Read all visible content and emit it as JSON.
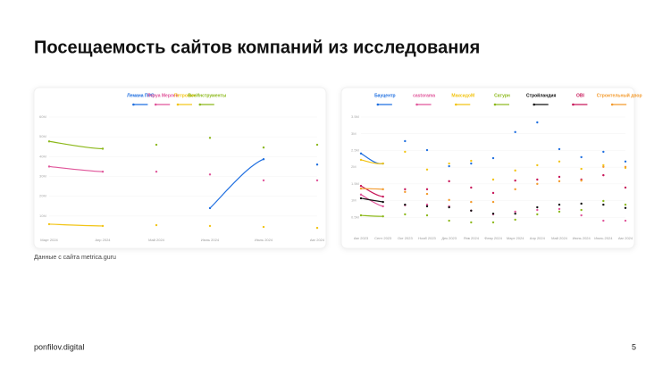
{
  "title": "Посещаемость сайтов компаний из исследования",
  "source": "Данные с сайта metrica.guru",
  "brand": "ponfilov.digital",
  "page_number": "5",
  "chart_data": [
    {
      "type": "line",
      "categories": [
        "Март 2024",
        "Апр 2024",
        "Май 2024",
        "Июнь 2024",
        "Июль 2024",
        "Авг 2024"
      ],
      "ylim": [
        0,
        60
      ],
      "yticks": [
        {
          "value": 10,
          "label": "10M"
        },
        {
          "value": 20,
          "label": "20M"
        },
        {
          "value": 30,
          "label": "30M"
        },
        {
          "value": 40,
          "label": "40M"
        },
        {
          "value": 50,
          "label": "50M"
        },
        {
          "value": 60,
          "label": "60M"
        }
      ],
      "series": [
        {
          "name": "Лемана ПРО",
          "color": "#1f6fe0",
          "values": [
            null,
            null,
            null,
            14,
            38.7,
            36
          ]
        },
        {
          "name": "Леруа Мерлен",
          "color": "#e0559a",
          "values": [
            35,
            32.4,
            32.4,
            31,
            28,
            28
          ]
        },
        {
          "name": "Петрович",
          "color": "#f2c414",
          "values": [
            5.9,
            5,
            5.4,
            5,
            4.5,
            4
          ]
        },
        {
          "name": "ВсеИнструменты",
          "color": "#8cb81a",
          "values": [
            47.7,
            44,
            46,
            49.5,
            44.6,
            46
          ]
        }
      ]
    },
    {
      "type": "line",
      "categories": [
        "Авг 2023",
        "Сент 2023",
        "Окт 2023",
        "Нояб 2023",
        "Дек 2023",
        "Янв 2024",
        "Февр 2024",
        "Март 2024",
        "Апр 2024",
        "Май 2024",
        "Июнь 2024",
        "Июль 2024",
        "Авг 2024"
      ],
      "ylim": [
        0,
        3.5
      ],
      "yticks": [
        {
          "value": 0.5,
          "label": "0.5M"
        },
        {
          "value": 1,
          "label": "1M"
        },
        {
          "value": 1.5,
          "label": "1.5M"
        },
        {
          "value": 2,
          "label": "2M"
        },
        {
          "value": 2.5,
          "label": "2.5M"
        },
        {
          "value": 3,
          "label": "3M"
        },
        {
          "value": 3.5,
          "label": "3.5M"
        }
      ],
      "series": [
        {
          "name": "Бауцентр",
          "color": "#1f6fe0",
          "values": [
            2.41,
            2.11,
            2.78,
            2.51,
            2.03,
            2.11,
            2.27,
            3.05,
            3.34,
            2.54,
            2.3,
            2.46,
            2.17
          ]
        },
        {
          "name": "castorama",
          "color": "#e0559a",
          "values": [
            1.18,
            0.83,
            0.86,
            0.88,
            0.83,
            0.7,
            0.59,
            0.67,
            0.72,
            0.75,
            0.56,
            0.4,
            0.4
          ]
        },
        {
          "name": "МаксидоМ",
          "color": "#f2c414",
          "values": [
            2.22,
            2.11,
            2.46,
            1.93,
            2.11,
            2.19,
            1.63,
            1.9,
            2.06,
            2.17,
            1.95,
            2.06,
            1.98
          ]
        },
        {
          "name": "Сатурн",
          "color": "#8cb81a",
          "values": [
            0.56,
            0.53,
            0.59,
            0.56,
            0.4,
            0.35,
            0.35,
            0.43,
            0.59,
            0.67,
            0.72,
            0.99,
            0.88
          ]
        },
        {
          "name": "Стройландия",
          "color": "#111111",
          "values": [
            1.07,
            0.96,
            0.88,
            0.83,
            0.8,
            0.7,
            0.61,
            0.61,
            0.8,
            0.88,
            0.91,
            0.88,
            0.78
          ]
        },
        {
          "name": "OBI",
          "color": "#c8185a",
          "values": [
            1.44,
            1.12,
            1.34,
            1.34,
            1.58,
            1.39,
            1.23,
            1.6,
            1.63,
            1.71,
            1.63,
            1.76,
            1.39
          ]
        },
        {
          "name": "Строительный двор",
          "color": "#f39a2c",
          "values": [
            1.36,
            1.34,
            1.26,
            1.2,
            1.02,
            0.96,
            0.96,
            1.34,
            1.5,
            1.58,
            1.6,
            2.01,
            2.01
          ]
        }
      ]
    }
  ]
}
